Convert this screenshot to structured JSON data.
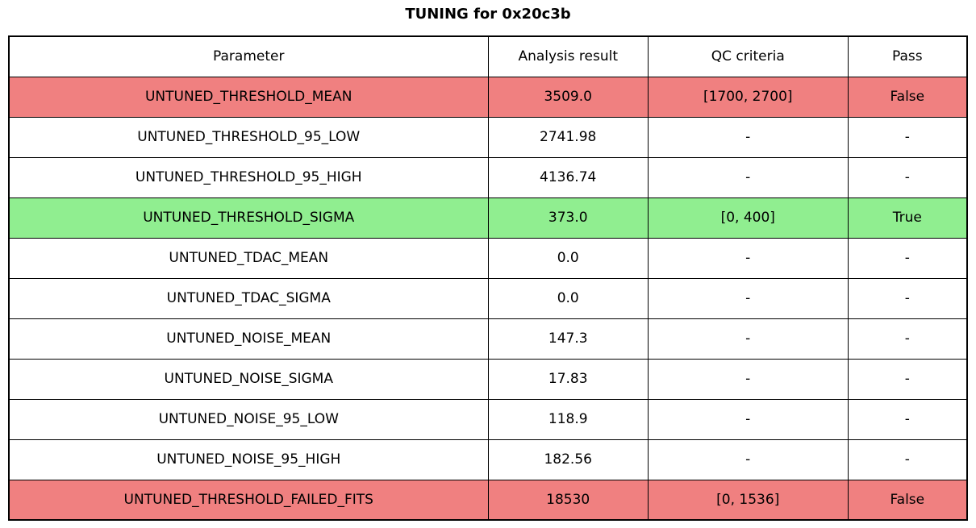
{
  "title": "TUNING for 0x20c3b",
  "colors": {
    "fail_row": "#F08080",
    "pass_row": "#90EE90",
    "neutral_row": "#FFFFFF",
    "border": "#000000",
    "text": "#000000",
    "background": "#FFFFFF"
  },
  "chart_data": {
    "type": "table",
    "title": "TUNING for 0x20c3b",
    "columns": [
      "Parameter",
      "Analysis result",
      "QC criteria",
      "Pass"
    ],
    "rows": [
      {
        "parameter": "UNTUNED_THRESHOLD_MEAN",
        "analysis_result": "3509.0",
        "qc_criteria": "[1700, 2700]",
        "pass": "False",
        "status": "fail"
      },
      {
        "parameter": "UNTUNED_THRESHOLD_95_LOW",
        "analysis_result": "2741.98",
        "qc_criteria": "-",
        "pass": "-",
        "status": "neutral"
      },
      {
        "parameter": "UNTUNED_THRESHOLD_95_HIGH",
        "analysis_result": "4136.74",
        "qc_criteria": "-",
        "pass": "-",
        "status": "neutral"
      },
      {
        "parameter": "UNTUNED_THRESHOLD_SIGMA",
        "analysis_result": "373.0",
        "qc_criteria": "[0, 400]",
        "pass": "True",
        "status": "pass"
      },
      {
        "parameter": "UNTUNED_TDAC_MEAN",
        "analysis_result": "0.0",
        "qc_criteria": "-",
        "pass": "-",
        "status": "neutral"
      },
      {
        "parameter": "UNTUNED_TDAC_SIGMA",
        "analysis_result": "0.0",
        "qc_criteria": "-",
        "pass": "-",
        "status": "neutral"
      },
      {
        "parameter": "UNTUNED_NOISE_MEAN",
        "analysis_result": "147.3",
        "qc_criteria": "-",
        "pass": "-",
        "status": "neutral"
      },
      {
        "parameter": "UNTUNED_NOISE_SIGMA",
        "analysis_result": "17.83",
        "qc_criteria": "-",
        "pass": "-",
        "status": "neutral"
      },
      {
        "parameter": "UNTUNED_NOISE_95_LOW",
        "analysis_result": "118.9",
        "qc_criteria": "-",
        "pass": "-",
        "status": "neutral"
      },
      {
        "parameter": "UNTUNED_NOISE_95_HIGH",
        "analysis_result": "182.56",
        "qc_criteria": "-",
        "pass": "-",
        "status": "neutral"
      },
      {
        "parameter": "UNTUNED_THRESHOLD_FAILED_FITS",
        "analysis_result": "18530",
        "qc_criteria": "[0, 1536]",
        "pass": "False",
        "status": "fail"
      }
    ]
  }
}
